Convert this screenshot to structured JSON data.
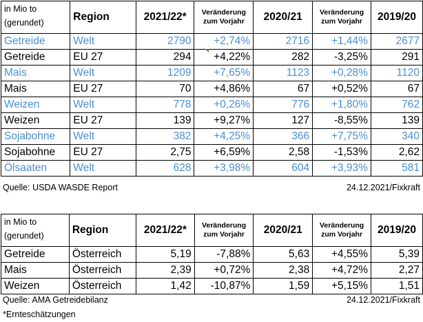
{
  "table1": {
    "unit_line1": "in Mio to",
    "unit_line2": "(gerundet)",
    "h_region": "Region",
    "h_y1": "2021/22*",
    "h_ch1_l1": "Veränderung",
    "h_ch1_l2": "zum Vorjahr",
    "h_y2": "2020/21",
    "h_ch2_l1": "Veränderung",
    "h_ch2_l2": "zum Vorjahr",
    "h_y3": "2019/20",
    "rows": [
      {
        "product": "Getreide",
        "region": "Welt",
        "v1": "2790",
        "c1": "+2,74%",
        "v2": "2716",
        "c2": "+1,44%",
        "v3": "2677"
      },
      {
        "product": "Getreide",
        "region": "EU 27",
        "v1": "294",
        "c1": "+4,22%",
        "v2": "282",
        "c2": "-3,25%",
        "v3": "291"
      },
      {
        "product": "Mais",
        "region": "Welt",
        "v1": "1209",
        "c1": "+7,65%",
        "v2": "1123",
        "c2": "+0,28%",
        "v3": "1120"
      },
      {
        "product": "Mais",
        "region": "EU 27",
        "v1": "70",
        "c1": "+4,86%",
        "v2": "67",
        "c2": "+0,52%",
        "v3": "67"
      },
      {
        "product": "Weizen",
        "region": "Welt",
        "v1": "778",
        "c1": "+0,26%",
        "v2": "776",
        "c2": "+1,80%",
        "v3": "762"
      },
      {
        "product": "Weizen",
        "region": "EU 27",
        "v1": "139",
        "c1": "+9,27%",
        "v2": "127",
        "c2": "-8,55%",
        "v3": "139"
      },
      {
        "product": "Sojabohne",
        "region": "Welt",
        "v1": "382",
        "c1": "+4,25%",
        "v2": "366",
        "c2": "+7,75%",
        "v3": "340"
      },
      {
        "product": "Sojabohne",
        "region": "EU 27",
        "v1": "2,75",
        "c1": "+6,59%",
        "v2": "2,58",
        "c2": "-1,53%",
        "v3": "2,62"
      },
      {
        "product": "Ölsaaten",
        "region": "Welt",
        "v1": "628",
        "c1": "+3,98%",
        "v2": "604",
        "c2": "+3,93%",
        "v3": "581"
      }
    ],
    "source": "Quelle: USDA WASDE Report",
    "date": "24.12.2021/Fixkraft"
  },
  "table2": {
    "unit_line1": "in Mio to",
    "unit_line2": "(gerundet)",
    "h_region": "Region",
    "h_y1": "2021/22*",
    "h_ch1_l1": "Veränderung",
    "h_ch1_l2": "zum Vorjahr",
    "h_y2": "2020/21",
    "h_ch2_l1": "Veränderung",
    "h_ch2_l2": "zum Vorjahr",
    "h_y3": "2019/20",
    "rows": [
      {
        "product": "Getreide",
        "region": "Österreich",
        "v1": "5,19",
        "c1": "-7,88%",
        "v2": "5,63",
        "c2": "+4,55%",
        "v3": "5,39"
      },
      {
        "product": "Mais",
        "region": "Österreich",
        "v1": "2,39",
        "c1": "+0,72%",
        "v2": "2,38",
        "c2": "+4,72%",
        "v3": "2,27"
      },
      {
        "product": "Weizen",
        "region": "Österreich",
        "v1": "1,42",
        "c1": "-10,87%",
        "v2": "1,59",
        "c2": "+5,15%",
        "v3": "1,51"
      }
    ],
    "source": "Quelle: AMA Getreidebilanz",
    "date": "24.12.2021/Fixkraft"
  },
  "footnote": "*Ernteschätzungen",
  "colors": {
    "welt_text": "#4a8fd6",
    "normal_text": "#000000"
  }
}
